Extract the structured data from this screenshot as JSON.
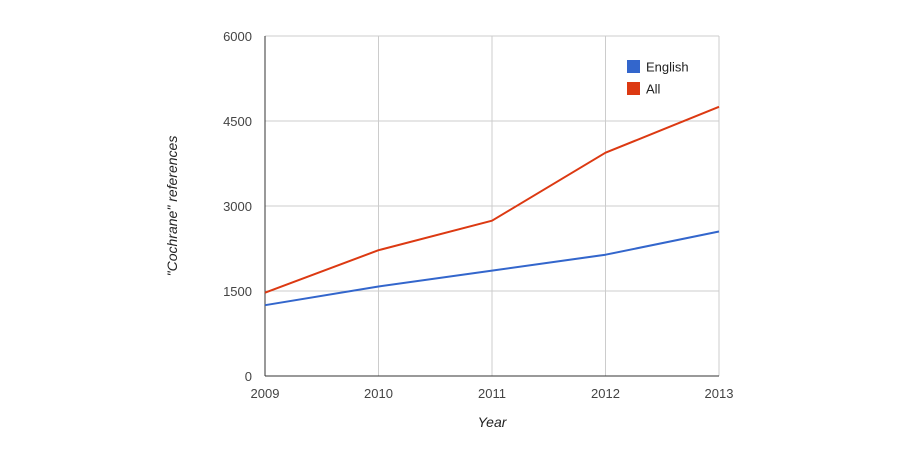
{
  "chart_data": {
    "type": "line",
    "title": "",
    "xlabel": "Year",
    "ylabel": "\"Cochrane\" references",
    "x": [
      "2009",
      "2010",
      "2011",
      "2012",
      "2013"
    ],
    "series": [
      {
        "name": "English",
        "color": "#3366cc",
        "values": [
          1250,
          1580,
          1860,
          2140,
          2550
        ]
      },
      {
        "name": "All",
        "color": "#dc3912",
        "values": [
          1470,
          2220,
          2740,
          3940,
          4750
        ]
      }
    ],
    "ylim": [
      0,
      6000
    ],
    "yticks": [
      "0",
      "1500",
      "3000",
      "4500",
      "6000"
    ],
    "grid": true,
    "legend_position": "top-right"
  }
}
